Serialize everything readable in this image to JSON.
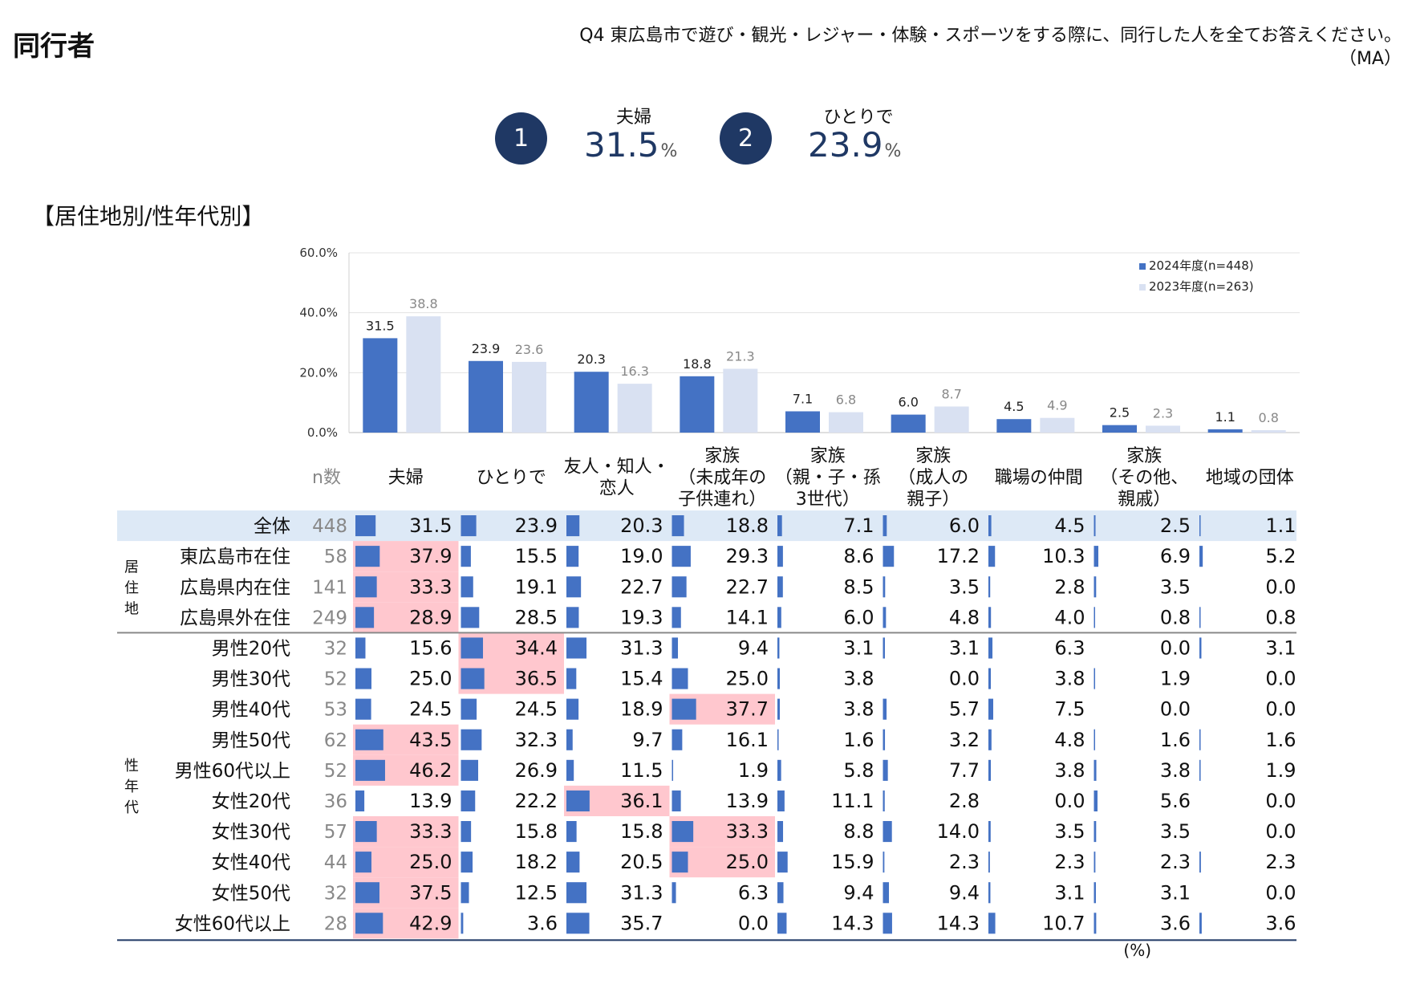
{
  "page_title": "同行者",
  "question": {
    "line1": "Q4  東広島市で遊び・観光・レジャー・体験・スポーツをする際に、同行した人を全てお答えください。",
    "line2": "（MA）"
  },
  "ranking": [
    {
      "rank": "1",
      "label": "夫婦",
      "value": "31.5",
      "unit": "%"
    },
    {
      "rank": "2",
      "label": "ひとりで",
      "value": "23.9",
      "unit": "%"
    }
  ],
  "section_title": "【居住地別/性年代別】",
  "colors": {
    "series2024": "#4472c4",
    "series2023": "#d9e1f2",
    "highlight": "#ffc7ce",
    "total_row": "#dde9f6",
    "navy": "#1f3864"
  },
  "chart_data": {
    "type": "bar",
    "categories": [
      "夫婦",
      "ひとりで",
      "友人・知人・恋人",
      "家族（未成年の子供連れ）",
      "家族（親・子・孫3世代）",
      "家族（成人の親子）",
      "職場の仲間",
      "家族（その他、親戚）",
      "地域の団体"
    ],
    "category_lines": [
      [
        "夫婦"
      ],
      [
        "ひとりで"
      ],
      [
        "友人・知人・",
        "恋人"
      ],
      [
        "家族",
        "（未成年の",
        "子供連れ）"
      ],
      [
        "家族",
        "（親・子・孫",
        "3世代）"
      ],
      [
        "家族",
        "（成人の",
        "親子）"
      ],
      [
        "職場の仲間"
      ],
      [
        "家族",
        "（その他、",
        "親戚）"
      ],
      [
        "地域の団体"
      ]
    ],
    "series": [
      {
        "name": "2024年度(n=448)",
        "values": [
          31.5,
          23.9,
          20.3,
          18.8,
          7.1,
          6.0,
          4.5,
          2.5,
          1.1
        ]
      },
      {
        "name": "2023年度(n=263)",
        "values": [
          38.8,
          23.6,
          16.3,
          21.3,
          6.8,
          8.7,
          4.9,
          2.3,
          0.8
        ]
      }
    ],
    "y_ticks": [
      "0.0%",
      "20.0%",
      "40.0%",
      "60.0%"
    ],
    "ylim": [
      0,
      60
    ],
    "legend_position": "top-right"
  },
  "table": {
    "n_header": "n数",
    "groups": [
      {
        "label": "居住地",
        "start": 1,
        "end": 3
      },
      {
        "label": "性年代",
        "start": 4,
        "end": 13
      }
    ],
    "rows": [
      {
        "label": "全体",
        "n": "448",
        "values": [
          31.5,
          23.9,
          20.3,
          18.8,
          7.1,
          6.0,
          4.5,
          2.5,
          1.1
        ],
        "highlight": []
      },
      {
        "label": "東広島市在住",
        "n": "58",
        "values": [
          37.9,
          15.5,
          19.0,
          29.3,
          8.6,
          17.2,
          10.3,
          6.9,
          5.2
        ],
        "highlight": [
          0
        ]
      },
      {
        "label": "広島県内在住",
        "n": "141",
        "values": [
          33.3,
          19.1,
          22.7,
          22.7,
          8.5,
          3.5,
          2.8,
          3.5,
          0.0
        ],
        "highlight": [
          0
        ]
      },
      {
        "label": "広島県外在住",
        "n": "249",
        "values": [
          28.9,
          28.5,
          19.3,
          14.1,
          6.0,
          4.8,
          4.0,
          0.8,
          0.8
        ],
        "highlight": [
          0
        ]
      },
      {
        "label": "男性20代",
        "n": "32",
        "values": [
          15.6,
          34.4,
          31.3,
          9.4,
          3.1,
          3.1,
          6.3,
          0.0,
          3.1
        ],
        "highlight": [
          1
        ]
      },
      {
        "label": "男性30代",
        "n": "52",
        "values": [
          25.0,
          36.5,
          15.4,
          25.0,
          3.8,
          0.0,
          3.8,
          1.9,
          0.0
        ],
        "highlight": [
          1
        ]
      },
      {
        "label": "男性40代",
        "n": "53",
        "values": [
          24.5,
          24.5,
          18.9,
          37.7,
          3.8,
          5.7,
          7.5,
          0.0,
          0.0
        ],
        "highlight": [
          3
        ]
      },
      {
        "label": "男性50代",
        "n": "62",
        "values": [
          43.5,
          32.3,
          9.7,
          16.1,
          1.6,
          3.2,
          4.8,
          1.6,
          1.6
        ],
        "highlight": [
          0
        ]
      },
      {
        "label": "男性60代以上",
        "n": "52",
        "values": [
          46.2,
          26.9,
          11.5,
          1.9,
          5.8,
          7.7,
          3.8,
          3.8,
          1.9
        ],
        "highlight": [
          0
        ]
      },
      {
        "label": "女性20代",
        "n": "36",
        "values": [
          13.9,
          22.2,
          36.1,
          13.9,
          11.1,
          2.8,
          0.0,
          5.6,
          0.0
        ],
        "highlight": [
          2
        ]
      },
      {
        "label": "女性30代",
        "n": "57",
        "values": [
          33.3,
          15.8,
          15.8,
          33.3,
          8.8,
          14.0,
          3.5,
          3.5,
          0.0
        ],
        "highlight": [
          0,
          3
        ]
      },
      {
        "label": "女性40代",
        "n": "44",
        "values": [
          25.0,
          18.2,
          20.5,
          25.0,
          15.9,
          2.3,
          2.3,
          2.3,
          2.3
        ],
        "highlight": [
          0,
          3
        ]
      },
      {
        "label": "女性50代",
        "n": "32",
        "values": [
          37.5,
          12.5,
          31.3,
          6.3,
          9.4,
          9.4,
          3.1,
          3.1,
          0.0
        ],
        "highlight": [
          0
        ]
      },
      {
        "label": "女性60代以上",
        "n": "28",
        "values": [
          42.9,
          3.6,
          35.7,
          0.0,
          14.3,
          14.3,
          10.7,
          3.6,
          3.6
        ],
        "highlight": [
          0
        ]
      }
    ],
    "unit_note": "(%)"
  }
}
